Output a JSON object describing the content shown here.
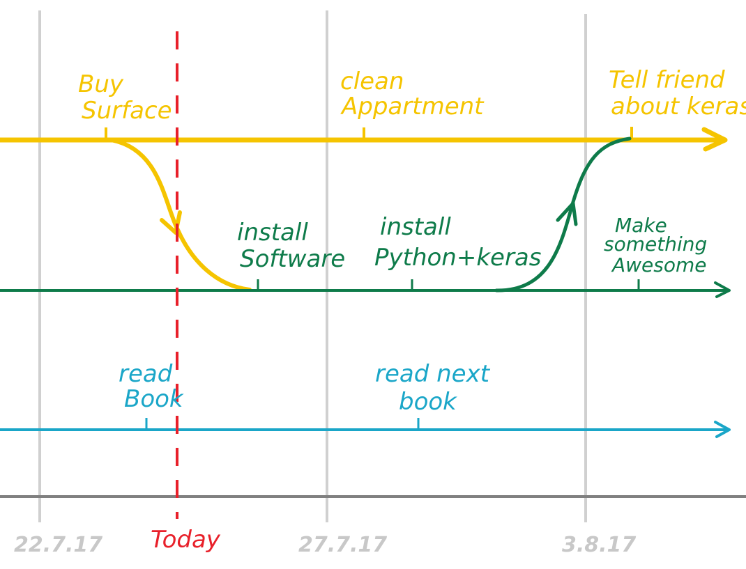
{
  "colors": {
    "yellow": "#f5c400",
    "green": "#0e7b4a",
    "blue": "#1aa6c8",
    "red": "#e8202a",
    "grid": "#d0d0d0",
    "axis": "#808080",
    "date_text": "#c8c8c8"
  },
  "dates": {
    "d1": "22.7.17",
    "d2": "27.7.17",
    "d3": "3.8.17"
  },
  "today": "Today",
  "yellow_track": {
    "e1": [
      "Buy",
      "Surface"
    ],
    "e2": [
      "clean",
      "Appartment"
    ],
    "e3": [
      "Tell friend",
      "about keras"
    ]
  },
  "green_track": {
    "e1": [
      "install",
      "Software"
    ],
    "e2": [
      "install",
      "Python+keras"
    ],
    "e3": [
      "Make",
      "something",
      "Awesome"
    ]
  },
  "blue_track": {
    "e1": [
      "read",
      "Book"
    ],
    "e2": [
      "read next",
      "book"
    ]
  }
}
